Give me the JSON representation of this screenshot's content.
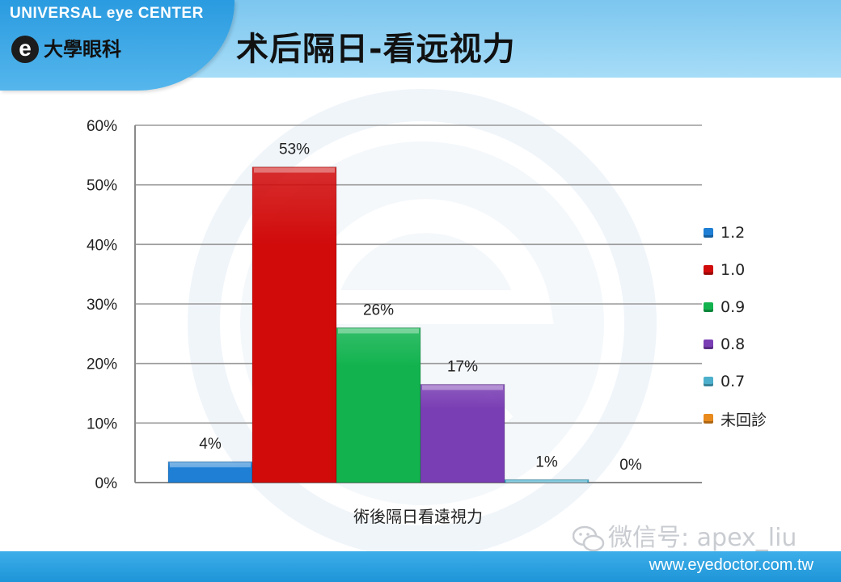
{
  "header": {
    "brand_en": "UNIVERSAL eye CENTER",
    "brand_mark": "e",
    "brand_zh": "大學眼科",
    "title": "术后隔日-看远视力"
  },
  "footer": {
    "wechat_text": "微信号: apex_liu",
    "website": "www.eyedoctor.com.tw"
  },
  "chart_data": {
    "type": "bar",
    "categories": [
      "術後隔日看遠視力"
    ],
    "xlabel": "術後隔日看遠視力",
    "ylabel": "",
    "ylim": [
      0,
      60
    ],
    "yticks": [
      "0%",
      "10%",
      "20%",
      "30%",
      "40%",
      "50%",
      "60%"
    ],
    "grid": true,
    "legend_position": "right",
    "series": [
      {
        "name": "1.2",
        "values": [
          3.5
        ],
        "label": "4%",
        "color": "#1e7fd4"
      },
      {
        "name": "1.0",
        "values": [
          53
        ],
        "label": "53%",
        "color": "#d10a0a"
      },
      {
        "name": "0.9",
        "values": [
          26
        ],
        "label": "26%",
        "color": "#12b34f"
      },
      {
        "name": "0.8",
        "values": [
          16.5
        ],
        "label": "17%",
        "color": "#7a3eb4"
      },
      {
        "name": "0.7",
        "values": [
          0.5
        ],
        "label": "1%",
        "color": "#4cb0cc"
      },
      {
        "name": "未回診",
        "values": [
          0
        ],
        "label": "0%",
        "color": "#e88a1c"
      }
    ]
  }
}
